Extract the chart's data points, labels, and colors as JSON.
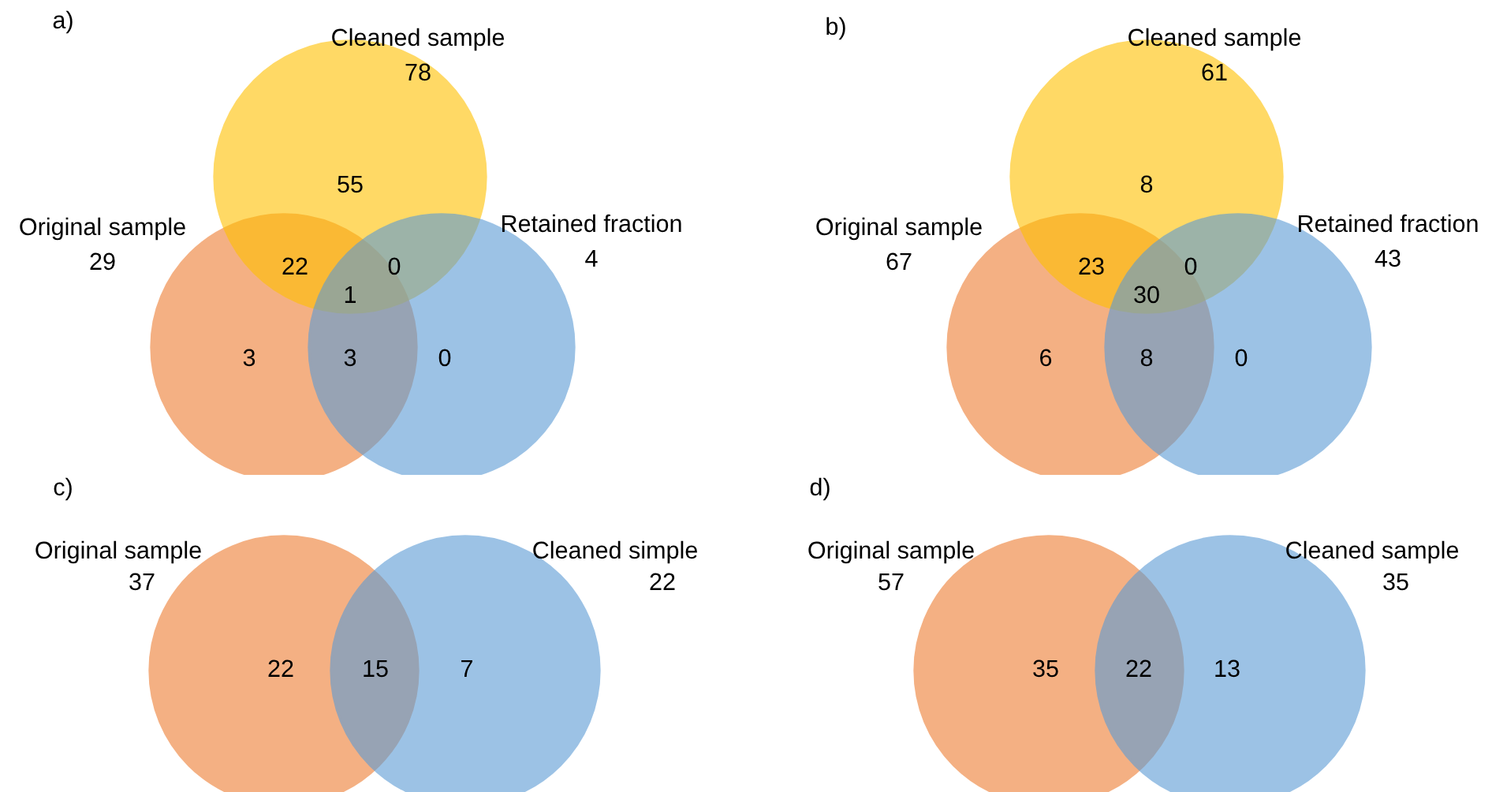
{
  "chart_data": [
    {
      "type": "other",
      "title": "a)",
      "categories": [
        "Original sample",
        "Cleaned sample",
        "Retained fraction"
      ],
      "values": [
        29,
        78,
        4
      ],
      "data_labels": true,
      "colors": [
        "#ed7d31",
        "#ffc000",
        "#5b9bd5"
      ],
      "annotations": [
        "3",
        "55",
        "0",
        "22",
        "3",
        "0",
        "1"
      ]
    },
    {
      "type": "other",
      "title": "b)",
      "categories": [
        "Original sample",
        "Cleaned sample",
        "Retained fraction"
      ],
      "values": [
        67,
        61,
        43
      ],
      "data_labels": true,
      "colors": [
        "#ed7d31",
        "#ffc000",
        "#5b9bd5"
      ],
      "annotations": [
        "6",
        "8",
        "0",
        "23",
        "8",
        "0",
        "30"
      ]
    },
    {
      "type": "other",
      "title": "c)",
      "categories": [
        "Original sample",
        "Cleaned simple"
      ],
      "values": [
        37,
        22
      ],
      "data_labels": true,
      "colors": [
        "#ed7d31",
        "#5b9bd5"
      ],
      "annotations": [
        "22",
        "7",
        "15"
      ]
    },
    {
      "type": "other",
      "title": "d)",
      "categories": [
        "Original sample",
        "Cleaned sample"
      ],
      "values": [
        57,
        35
      ],
      "data_labels": true,
      "colors": [
        "#ed7d31",
        "#5b9bd5"
      ],
      "annotations": [
        "35",
        "13",
        "22"
      ]
    }
  ]
}
